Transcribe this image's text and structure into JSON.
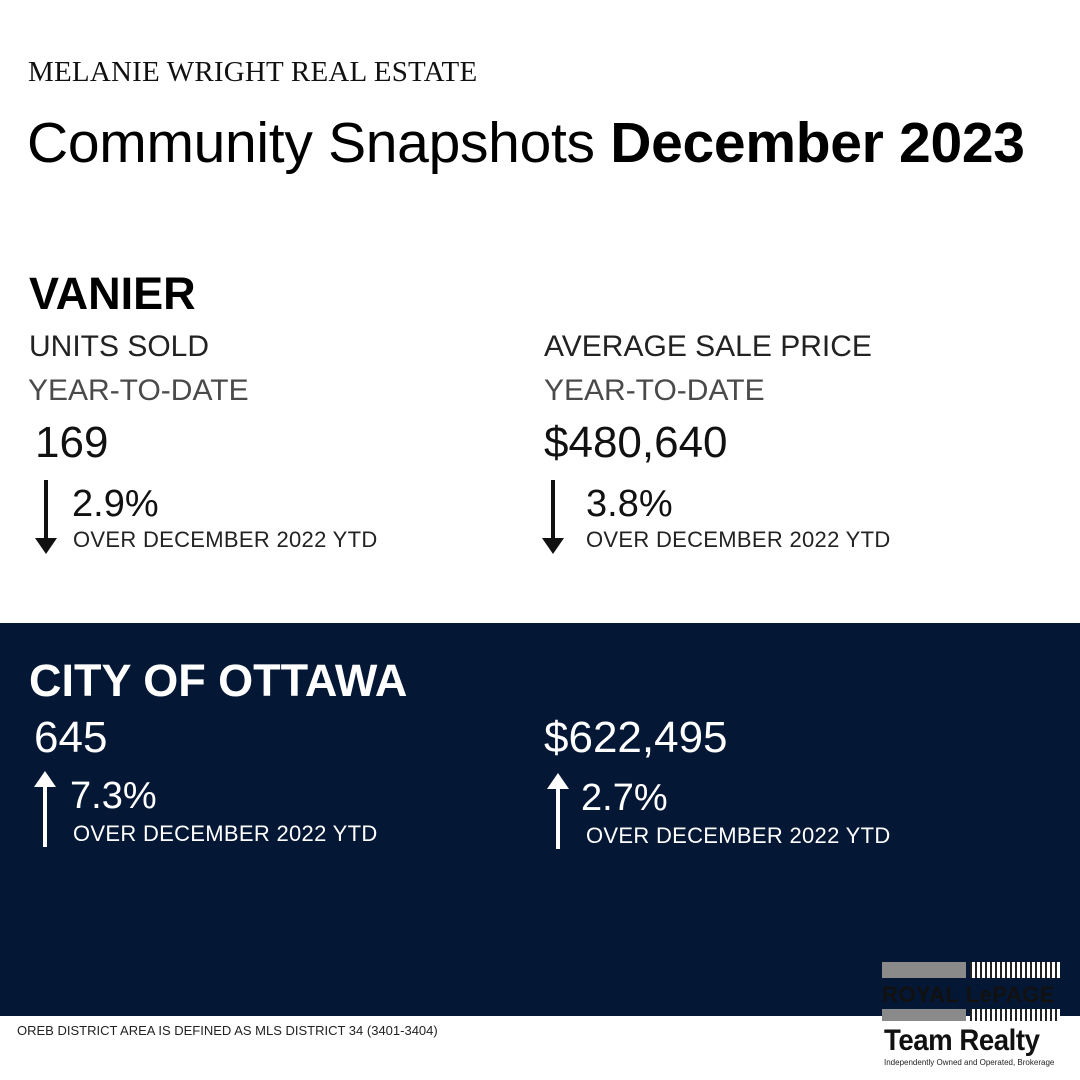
{
  "header": {
    "brand": "MELANIE WRIGHT REAL ESTATE",
    "title_regular": "Community Snapshots ",
    "title_bold": "December 2023"
  },
  "vanier": {
    "heading": "VANIER",
    "units": {
      "label": "UNITS SOLD",
      "period": "YEAR-TO-DATE",
      "value": "169",
      "change": "2.9%",
      "direction": "down",
      "comparison": "OVER DECEMBER 2022 YTD"
    },
    "price": {
      "label": "AVERAGE SALE PRICE",
      "period": "YEAR-TO-DATE",
      "value": "$480,640",
      "change": "3.8%",
      "direction": "down",
      "comparison": "OVER DECEMBER 2022 YTD"
    }
  },
  "ottawa": {
    "heading": "CITY OF OTTAWA",
    "units": {
      "value": "645",
      "change": "7.3%",
      "direction": "up",
      "comparison": "OVER DECEMBER 2022 YTD"
    },
    "price": {
      "value": "$622,495",
      "change": "2.7%",
      "direction": "up",
      "comparison": "OVER DECEMBER 2022 YTD"
    }
  },
  "footnote": "OREB DISTRICT AREA IS DEFINED AS MLS DISTRICT 34 (3401-3404)",
  "logo": {
    "line1": "ROYAL LePAGE",
    "line2": "Team Realty",
    "tagline": "Independently Owned and Operated, Brokerage"
  },
  "colors": {
    "band_background": "#041735",
    "text_dark": "#111111",
    "text_light": "#ffffff"
  },
  "icons": {
    "down": "arrow-down-icon",
    "up": "arrow-up-icon"
  }
}
